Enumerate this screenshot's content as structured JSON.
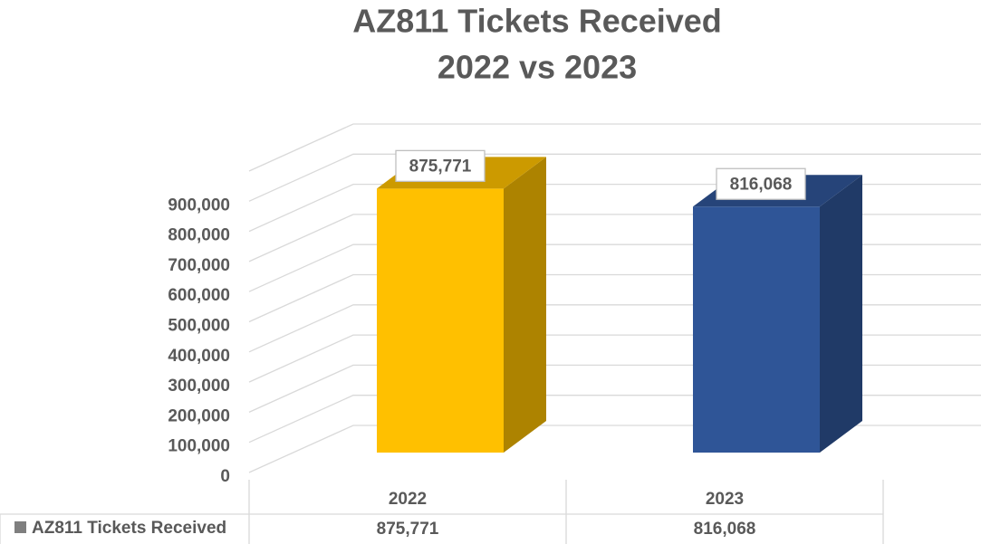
{
  "chart_data": {
    "type": "bar3d",
    "title": [
      "AZ811 Tickets Received",
      "2022 vs 2023"
    ],
    "categories": [
      "2022",
      "2023"
    ],
    "series": [
      {
        "name": "AZ811 Tickets Received",
        "colors": [
          "#FFC000",
          "#2F5597"
        ],
        "values": [
          875771,
          816068
        ],
        "value_labels": [
          "875,771",
          "816,068"
        ]
      }
    ],
    "ylim": [
      0,
      1000000
    ],
    "yticks": [
      0,
      {
        "value": 100000,
        "label": "100,000"
      },
      {
        "value": 200000,
        "label": "200,000"
      },
      {
        "value": 300000,
        "label": "300,000"
      },
      {
        "value": 400000,
        "label": "400,000"
      },
      {
        "value": 500000,
        "label": "500,000"
      },
      {
        "value": 600000,
        "label": "600,000"
      },
      {
        "value": 700000,
        "label": "700,000"
      },
      {
        "value": 800000,
        "label": "800,000"
      },
      {
        "value": 900000,
        "label": "900,000"
      }
    ],
    "grid": true,
    "data_table": true
  }
}
